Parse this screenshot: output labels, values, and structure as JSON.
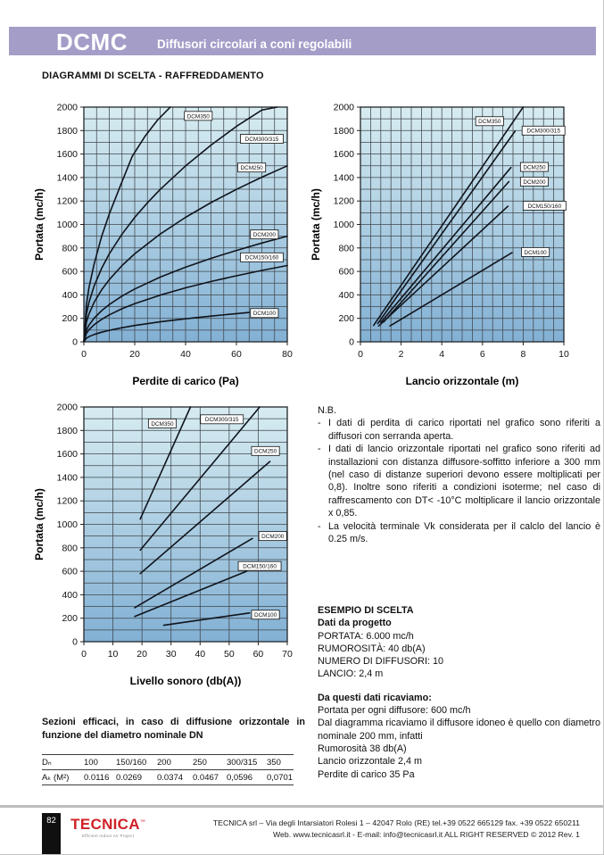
{
  "colors": {
    "header_bar": "#a49dc8",
    "logo_red": "#cf2026",
    "chart_gradient_top": "#d7ecf1",
    "chart_gradient_bottom": "#82b0d4",
    "grid_line": "#40464b",
    "curve": "#10141c"
  },
  "header": {
    "model": "DCMC",
    "subtitle": "Diffusori circolari a coni regolabili"
  },
  "section_title": "DIAGRAMMI DI SCELTA - RAFFREDDAMENTO",
  "nb": {
    "title": "N.B.",
    "marker": "-",
    "items": [
      "I dati di perdita di carico riportati nel grafico sono riferiti a diffusori con serranda aperta.",
      "I dati di lancio orizzontale riportati nel grafico sono riferiti ad installazioni con distanza diffusore-soffitto inferiore a 300 mm (nel caso di distanze superiori devono essere moltiplicati per 0,8). Inoltre sono riferiti a condizioni isoterme; nel caso di raffrescamento con  DT< -10°C moltiplicare il lancio orizzontale x 0,85.",
      "La velocità terminale Vk considerata per il calclo del lancio è 0.25 m/s."
    ]
  },
  "esempio": {
    "title": "ESEMPIO DI SCELTA",
    "subtitle": "Dati da progetto",
    "dati": [
      "PORTATA: 6.000 mc/h",
      "RUMOROSITÀ: 40 db(A)",
      "NUMERO DI DIFFUSORI: 10",
      "LANCIO: 2,4 m"
    ],
    "ricaviamo_title": "Da questi dati ricaviamo:",
    "ricaviamo": [
      "Portata per ogni diffusore: 600 mc/h",
      "Dal diagramma ricaviamo il diffusore idoneo è quello con diametro nominale 200 mm, infatti",
      "Rumorosità 38 db(A)",
      "Lancio orizzontale 2,4 m",
      "Perdite di carico 35 Pa"
    ]
  },
  "sezioni_heading": "Sezioni efficaci, in caso di diffusione orizzontale in funzione del diametro nominale DN",
  "table": {
    "header": [
      "Dₙ",
      "100",
      "150/160",
      "200",
      "250",
      "300/315",
      "350"
    ],
    "values": [
      "Aₖ (M²)",
      "0.0116",
      "0.0269",
      "0.0374",
      "0.0467",
      "0,0596",
      "0,0701"
    ]
  },
  "footer": {
    "page_number": "82",
    "logo_text": "TECNICA",
    "logo_tm": "™",
    "logo_tagline": "Efficient Indoor Air Project",
    "address_line1": "TECNICA srl – Via degli Intarsiatori Rolesi 1 – 42047 Rolo (RE) tel.+39 0522 665129 fax. +39 0522 650211",
    "address_line2": "Web. www.tecnicasrl.it  - E-mail: info@tecnicasrl.it   ALL RIGHT RESERVED  © 2012  Rev. 1"
  },
  "chart_data": [
    {
      "type": "line",
      "xlabel": "Perdite di carico (Pa)",
      "ylabel": "Portata (mc/h)",
      "xaxis": {
        "min": 0,
        "max": 80,
        "grid": 5,
        "label": 20
      },
      "yaxis": {
        "min": 0,
        "max": 2000,
        "grid": 100,
        "label": 200
      },
      "series": [
        {
          "name": "DCM350",
          "label_at": [
            45,
            1925
          ],
          "points": [
            [
              0,
              0
            ],
            [
              1,
              320
            ],
            [
              2,
              460
            ],
            [
              4,
              660
            ],
            [
              7,
              900
            ],
            [
              10,
              1090
            ],
            [
              14,
              1310
            ],
            [
              19,
              1580
            ],
            [
              24,
              1750
            ],
            [
              29,
              1890
            ],
            [
              34,
              2000
            ]
          ]
        },
        {
          "name": "DCM300/315",
          "label_at": [
            70,
            1730
          ],
          "points": [
            [
              0,
              0
            ],
            [
              1,
              237
            ],
            [
              2,
              335
            ],
            [
              4,
              474
            ],
            [
              7,
              627
            ],
            [
              10,
              750
            ],
            [
              15,
              918
            ],
            [
              20,
              1060
            ],
            [
              25,
              1185
            ],
            [
              30,
              1298
            ],
            [
              40,
              1499
            ],
            [
              50,
              1676
            ],
            [
              60,
              1836
            ],
            [
              70,
              1975
            ],
            [
              76,
              2000
            ]
          ]
        },
        {
          "name": "DCM250",
          "label_at": [
            66,
            1485
          ],
          "points": [
            [
              0,
              0
            ],
            [
              1,
              168
            ],
            [
              2,
              237
            ],
            [
              4,
              335
            ],
            [
              7,
              444
            ],
            [
              10,
              530
            ],
            [
              15,
              650
            ],
            [
              20,
              750
            ],
            [
              30,
              918
            ],
            [
              40,
              1061
            ],
            [
              50,
              1186
            ],
            [
              60,
              1299
            ],
            [
              70,
              1403
            ],
            [
              80,
              1500
            ]
          ]
        },
        {
          "name": "DCM200",
          "label_at": [
            71,
            915
          ],
          "points": [
            [
              0,
              0
            ],
            [
              1,
              101
            ],
            [
              2,
              142
            ],
            [
              4,
              201
            ],
            [
              7,
              266
            ],
            [
              10,
              318
            ],
            [
              15,
              390
            ],
            [
              20,
              450
            ],
            [
              30,
              551
            ],
            [
              40,
              636
            ],
            [
              50,
              711
            ],
            [
              60,
              779
            ],
            [
              70,
              842
            ],
            [
              80,
              900
            ]
          ]
        },
        {
          "name": "DCM150/160",
          "label_at": [
            70,
            720
          ],
          "points": [
            [
              0,
              0
            ],
            [
              1,
              73
            ],
            [
              2,
              103
            ],
            [
              4,
              145
            ],
            [
              7,
              192
            ],
            [
              10,
              230
            ],
            [
              15,
              282
            ],
            [
              20,
              325
            ],
            [
              30,
              398
            ],
            [
              40,
              460
            ],
            [
              50,
              514
            ],
            [
              60,
              563
            ],
            [
              70,
              608
            ],
            [
              80,
              650
            ]
          ]
        },
        {
          "name": "DCM100",
          "label_at": [
            71,
            245
          ],
          "points": [
            [
              0,
              0
            ],
            [
              1,
              31
            ],
            [
              2,
              44
            ],
            [
              4,
              62
            ],
            [
              7,
              82
            ],
            [
              10,
              98
            ],
            [
              15,
              120
            ],
            [
              20,
              139
            ],
            [
              30,
              170
            ],
            [
              40,
              196
            ],
            [
              50,
              219
            ],
            [
              60,
              240
            ],
            [
              65,
              250
            ]
          ]
        }
      ]
    },
    {
      "type": "line",
      "xlabel": "Lancio orizzontale (m)",
      "ylabel": "Portata (mc/h)",
      "xaxis": {
        "min": 0,
        "max": 10,
        "grid": 0.5,
        "label": 2
      },
      "yaxis": {
        "min": 0,
        "max": 2000,
        "grid": 100,
        "label": 200
      },
      "series": [
        {
          "name": "DCM350",
          "label_at": [
            6.35,
            1880
          ],
          "points": [
            [
              0.65,
              140
            ],
            [
              8.0,
              2000
            ]
          ]
        },
        {
          "name": "DCM300/315",
          "label_at": [
            9.0,
            1800
          ],
          "points": [
            [
              0.85,
              155
            ],
            [
              7.6,
              1795
            ]
          ]
        },
        {
          "name": "DCM250",
          "label_at": [
            8.55,
            1490
          ],
          "points": [
            [
              1.0,
              165
            ],
            [
              7.4,
              1485
            ]
          ]
        },
        {
          "name": "DCM200",
          "label_at": [
            8.55,
            1365
          ],
          "points": [
            [
              1.15,
              170
            ],
            [
              7.3,
              1365
            ]
          ]
        },
        {
          "name": "DCM150/160",
          "label_at": [
            9.05,
            1160
          ],
          "points": [
            [
              0.9,
              135
            ],
            [
              7.25,
              1155
            ]
          ]
        },
        {
          "name": "DCM100",
          "label_at": [
            8.6,
            765
          ],
          "points": [
            [
              1.45,
              135
            ],
            [
              7.45,
              760
            ]
          ]
        }
      ]
    },
    {
      "type": "line",
      "xlabel": "Livello sonoro (db(A))",
      "ylabel": "Portata (mc/h)",
      "xaxis": {
        "min": 0,
        "max": 70,
        "grid": 10,
        "label": 10
      },
      "yaxis": {
        "min": 0,
        "max": 2000,
        "grid": 100,
        "label": 200
      },
      "series": [
        {
          "name": "DCM350",
          "label_at": [
            27,
            1860
          ],
          "points": [
            [
              19.4,
              1045
            ],
            [
              36.7,
              2000
            ]
          ]
        },
        {
          "name": "DCM300/315",
          "label_at": [
            47.5,
            1895
          ],
          "points": [
            [
              19.4,
              780
            ],
            [
              60.5,
              2000
            ]
          ]
        },
        {
          "name": "DCM250",
          "label_at": [
            62.5,
            1625
          ],
          "points": [
            [
              19.4,
              580
            ],
            [
              64,
              1535
            ]
          ]
        },
        {
          "name": "DCM200",
          "label_at": [
            65,
            900
          ],
          "points": [
            [
              17.5,
              290
            ],
            [
              58,
              880
            ]
          ]
        },
        {
          "name": "DCM150/160",
          "label_at": [
            60.5,
            645
          ],
          "points": [
            [
              17.5,
              215
            ],
            [
              56,
              600
            ]
          ]
        },
        {
          "name": "DCM100",
          "label_at": [
            62.5,
            230
          ],
          "points": [
            [
              27.5,
              140
            ],
            [
              57,
              245
            ]
          ]
        }
      ]
    }
  ]
}
